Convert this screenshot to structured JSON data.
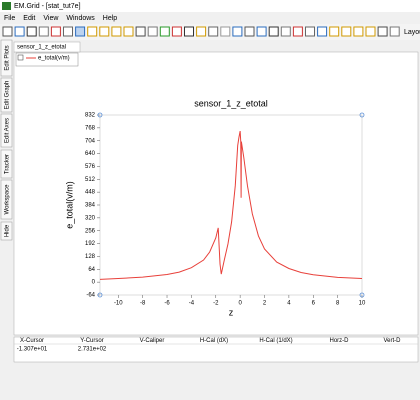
{
  "window": {
    "title": "EM.Grid - [stat_tut7e]"
  },
  "menu": [
    "File",
    "Edit",
    "View",
    "Windows",
    "Help"
  ],
  "toolbar": {
    "label": "Layou"
  },
  "tab": "sensor_1_z_etotal",
  "side_tabs": [
    "Edit Plots",
    "Edit Graph",
    "Edit Axes",
    "Tracker",
    "Workspace",
    "Hide"
  ],
  "chart_data": {
    "type": "line",
    "title": "sensor_1_z_etotal",
    "x_label": "z",
    "y_label": "e_total(v/m)",
    "x": [
      -11.5,
      -10,
      -8,
      -6,
      -5,
      -4,
      -3,
      -2.5,
      -2,
      -1.8,
      -1.65,
      -1.55,
      -1.3,
      -1,
      -0.7,
      -0.4,
      -0.2,
      -0.1,
      0,
      0.05,
      0.08,
      0.1,
      0.3,
      0.6,
      1,
      1.5,
      2,
      3,
      4,
      5,
      6,
      8,
      10
    ],
    "series": [
      {
        "name": "e_total(v/m)",
        "color": "#e8403a",
        "values": [
          14,
          18,
          25,
          38,
          50,
          72,
          110,
          150,
          220,
          270,
          90,
          40,
          110,
          190,
          300,
          480,
          680,
          720,
          752,
          700,
          420,
          700,
          620,
          480,
          340,
          230,
          165,
          100,
          68,
          48,
          37,
          24,
          18
        ]
      }
    ],
    "xlim": [
      -11.5,
      10
    ],
    "xticks": [
      -10,
      -8,
      -6,
      -4,
      -2,
      0,
      2,
      4,
      6,
      8,
      10
    ],
    "ylim": [
      -64,
      832
    ],
    "yticks": [
      -64,
      0,
      64,
      128,
      192,
      256,
      320,
      384,
      448,
      512,
      576,
      640,
      704,
      768,
      832
    ]
  },
  "status_table": {
    "headers": [
      "X-Cursor",
      "Y-Cursor",
      "V-Caliper",
      "H-Cal (dX)",
      "H-Cal (1/dX)",
      "Horz-D",
      "Vert-D"
    ],
    "rows": [
      [
        "-1.307e+01",
        "2.731e+02"
      ]
    ]
  }
}
